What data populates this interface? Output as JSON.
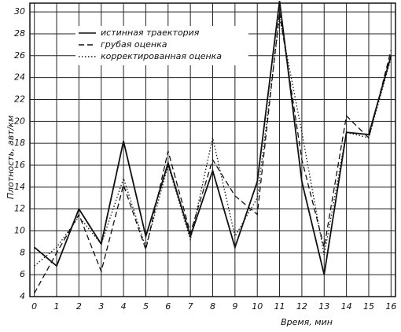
{
  "chart_data": {
    "type": "line",
    "x_label": "Время, мин",
    "y_label": "Плотность, авт/км",
    "x": [
      0,
      1,
      2,
      3,
      4,
      5,
      6,
      7,
      8,
      9,
      10,
      11,
      12,
      13,
      14,
      15,
      16
    ],
    "xlim": [
      -0.2,
      16.2
    ],
    "xticks": [
      0,
      1,
      2,
      3,
      4,
      5,
      6,
      7,
      8,
      9,
      10,
      11,
      12,
      13,
      14,
      15,
      16
    ],
    "ylim": [
      4,
      30.8
    ],
    "yticks": [
      4,
      6,
      8,
      10,
      12,
      14,
      16,
      18,
      20,
      22,
      24,
      26,
      28,
      30
    ],
    "grid": true,
    "legend": "upper left",
    "series": [
      {
        "name": "истинная траектория",
        "color": "#111111",
        "line_style": "solid",
        "values": [
          8.5,
          6.8,
          12,
          8.8,
          18.2,
          9.5,
          16.2,
          9.5,
          15.5,
          8.5,
          14.5,
          31,
          14.5,
          6,
          19,
          18.8,
          26
        ]
      },
      {
        "name": "грубая оценка",
        "color": "#111111",
        "line_style": "dashed",
        "values": [
          4.3,
          8,
          11.5,
          6.3,
          14.2,
          8.3,
          17.3,
          9.8,
          16.5,
          13.2,
          11.5,
          30,
          16.5,
          8.5,
          20.5,
          18.5,
          26.5
        ]
      },
      {
        "name": "корректированная оценка",
        "color": "#111111",
        "line_style": "dotted",
        "values": [
          6.8,
          8.5,
          11.3,
          8.8,
          14.8,
          8.5,
          16,
          9.2,
          18.5,
          9.5,
          13,
          29.5,
          19,
          7.8,
          19,
          18.5,
          25.8
        ]
      }
    ]
  }
}
